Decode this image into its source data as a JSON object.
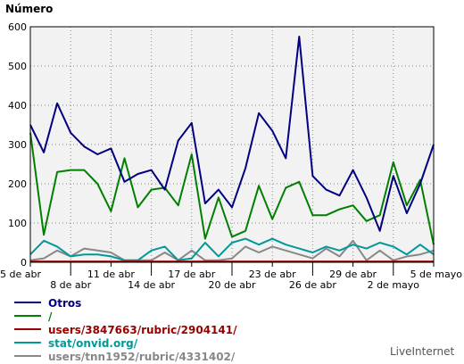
{
  "chart_data": {
    "type": "line",
    "ylabel": "Número",
    "ylim": [
      0,
      600
    ],
    "yticks": [
      0,
      100,
      200,
      300,
      400,
      500,
      600
    ],
    "x": [
      "5 de abr",
      "6",
      "7",
      "8 de abr",
      "9",
      "10",
      "11 de abr",
      "12",
      "13",
      "14 de abr",
      "15",
      "16",
      "17 de abr",
      "18",
      "19",
      "20 de abr",
      "21",
      "22",
      "23 de abr",
      "24",
      "25",
      "26 de abr",
      "27",
      "28",
      "29 de abr",
      "30",
      "1",
      "2 de mayo",
      "3",
      "4",
      "5 de mayo"
    ],
    "xticks": [
      {
        "label": "5 de abr",
        "index": 0,
        "row": 0
      },
      {
        "label": "8 de abr",
        "index": 3,
        "row": 1
      },
      {
        "label": "11 de abr",
        "index": 6,
        "row": 0
      },
      {
        "label": "14 de abr",
        "index": 9,
        "row": 1
      },
      {
        "label": "17 de abr",
        "index": 12,
        "row": 0
      },
      {
        "label": "20 de abr",
        "index": 15,
        "row": 1
      },
      {
        "label": "23 de abr",
        "index": 18,
        "row": 0
      },
      {
        "label": "26 de abr",
        "index": 21,
        "row": 1
      },
      {
        "label": "29 de abr",
        "index": 24,
        "row": 0
      },
      {
        "label": "2 de mayo",
        "index": 27,
        "row": 1
      },
      {
        "label": "5 de mayo",
        "index": 30,
        "row": 0
      }
    ],
    "grid": true,
    "legend_position": "bottom",
    "series": [
      {
        "name": "Otros",
        "color": "#000080",
        "values": [
          350,
          280,
          405,
          330,
          295,
          275,
          290,
          205,
          225,
          235,
          185,
          310,
          355,
          150,
          185,
          140,
          240,
          380,
          335,
          265,
          575,
          220,
          185,
          170,
          235,
          165,
          80,
          220,
          125,
          200,
          300
        ]
      },
      {
        "name": "/",
        "color": "#008000",
        "values": [
          330,
          70,
          230,
          235,
          235,
          200,
          130,
          265,
          140,
          185,
          190,
          145,
          275,
          60,
          165,
          65,
          80,
          195,
          110,
          190,
          205,
          120,
          120,
          135,
          145,
          105,
          120,
          255,
          145,
          210,
          45
        ]
      },
      {
        "name": "users/3847663/rubric/2904141/",
        "color": "#990000",
        "values": [
          2,
          2,
          2,
          2,
          2,
          2,
          2,
          2,
          2,
          2,
          2,
          2,
          2,
          2,
          2,
          2,
          2,
          2,
          2,
          2,
          2,
          2,
          2,
          2,
          2,
          2,
          2,
          2,
          2,
          2,
          2
        ]
      },
      {
        "name": "stat/onvid.org/",
        "color": "#009999",
        "values": [
          20,
          55,
          40,
          15,
          20,
          20,
          15,
          5,
          5,
          30,
          40,
          5,
          10,
          50,
          15,
          50,
          60,
          45,
          60,
          45,
          35,
          25,
          40,
          30,
          45,
          35,
          50,
          40,
          20,
          45,
          20
        ]
      },
      {
        "name": "users/tnn1952/rubric/4331402/",
        "color": "#888888",
        "values": [
          5,
          10,
          30,
          15,
          35,
          30,
          25,
          5,
          5,
          5,
          25,
          5,
          30,
          5,
          5,
          10,
          40,
          25,
          40,
          30,
          20,
          10,
          35,
          15,
          55,
          5,
          30,
          5,
          15,
          20,
          30
        ]
      }
    ]
  },
  "branding": "LiveInternet"
}
